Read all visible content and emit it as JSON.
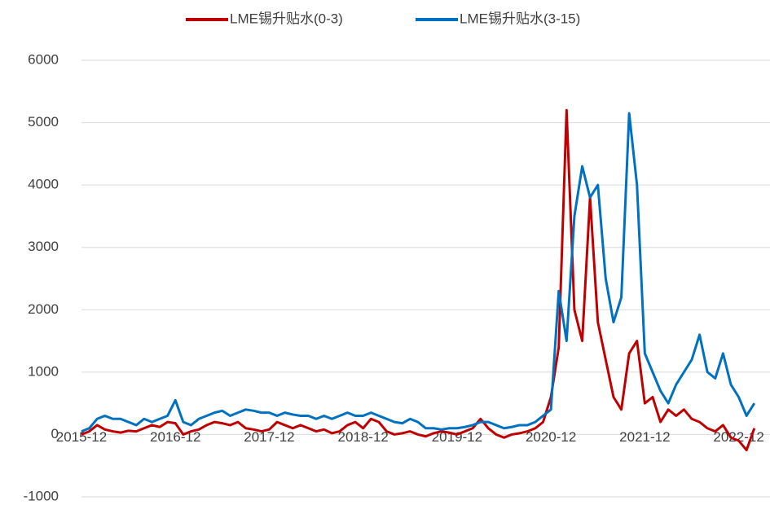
{
  "chart_data": {
    "type": "line",
    "x": [
      "2015-12",
      "2016-01",
      "2016-02",
      "2016-03",
      "2016-04",
      "2016-05",
      "2016-06",
      "2016-07",
      "2016-08",
      "2016-09",
      "2016-10",
      "2016-11",
      "2016-12",
      "2017-01",
      "2017-02",
      "2017-03",
      "2017-04",
      "2017-05",
      "2017-06",
      "2017-07",
      "2017-08",
      "2017-09",
      "2017-10",
      "2017-11",
      "2017-12",
      "2018-01",
      "2018-02",
      "2018-03",
      "2018-04",
      "2018-05",
      "2018-06",
      "2018-07",
      "2018-08",
      "2018-09",
      "2018-10",
      "2018-11",
      "2018-12",
      "2019-01",
      "2019-02",
      "2019-03",
      "2019-04",
      "2019-05",
      "2019-06",
      "2019-07",
      "2019-08",
      "2019-09",
      "2019-10",
      "2019-11",
      "2019-12",
      "2020-01",
      "2020-02",
      "2020-03",
      "2020-04",
      "2020-05",
      "2020-06",
      "2020-07",
      "2020-08",
      "2020-09",
      "2020-10",
      "2020-11",
      "2020-12",
      "2021-01",
      "2021-02",
      "2021-03",
      "2021-04",
      "2021-05",
      "2021-06",
      "2021-07",
      "2021-08",
      "2021-09",
      "2021-10",
      "2021-11",
      "2021-12",
      "2022-01",
      "2022-02",
      "2022-03",
      "2022-04",
      "2022-05",
      "2022-06",
      "2022-07",
      "2022-08",
      "2022-09",
      "2022-10",
      "2022-11",
      "2022-12",
      "2023-01",
      "2023-02"
    ],
    "series": [
      {
        "name": "LME锡升贴水(0-3)",
        "color": "#c00000",
        "values": [
          0,
          50,
          150,
          80,
          50,
          30,
          60,
          50,
          100,
          150,
          120,
          200,
          180,
          0,
          50,
          80,
          150,
          200,
          180,
          150,
          200,
          100,
          80,
          50,
          80,
          200,
          150,
          100,
          150,
          100,
          50,
          80,
          20,
          50,
          150,
          200,
          100,
          250,
          200,
          50,
          0,
          20,
          50,
          0,
          -30,
          20,
          50,
          30,
          0,
          50,
          100,
          250,
          100,
          0,
          -50,
          0,
          20,
          50,
          100,
          200,
          600,
          1400,
          5200,
          2000,
          1500,
          3800,
          1800,
          1200,
          600,
          400,
          1300,
          1500,
          500,
          600,
          200,
          400,
          300,
          400,
          250,
          200,
          100,
          50,
          150,
          -50,
          -100,
          -250,
          100
        ]
      },
      {
        "name": "LME锡升贴水(3-15)",
        "color": "#0070c0",
        "values": [
          50,
          100,
          250,
          300,
          250,
          250,
          200,
          150,
          250,
          200,
          250,
          300,
          550,
          200,
          150,
          250,
          300,
          350,
          380,
          300,
          350,
          400,
          380,
          350,
          350,
          300,
          350,
          320,
          300,
          300,
          250,
          300,
          250,
          300,
          350,
          300,
          300,
          350,
          300,
          250,
          200,
          180,
          250,
          200,
          100,
          100,
          80,
          100,
          100,
          120,
          150,
          200,
          200,
          150,
          100,
          120,
          150,
          150,
          200,
          300,
          400,
          2300,
          1500,
          3500,
          4300,
          3800,
          4000,
          2500,
          1800,
          2200,
          5150,
          4000,
          1300,
          1000,
          700,
          500,
          800,
          1000,
          1200,
          1600,
          1000,
          900,
          1300,
          800,
          600,
          300,
          500
        ]
      }
    ],
    "xlim": [
      "2015-12",
      "2023-04"
    ],
    "xticks": [
      "2015-12",
      "2016-12",
      "2017-12",
      "2018-12",
      "2019-12",
      "2020-12",
      "2021-12",
      "2022-12"
    ],
    "ylim": [
      -1000,
      6000
    ],
    "yticks": [
      -1000,
      0,
      1000,
      2000,
      3000,
      4000,
      5000,
      6000
    ],
    "grid": true
  }
}
